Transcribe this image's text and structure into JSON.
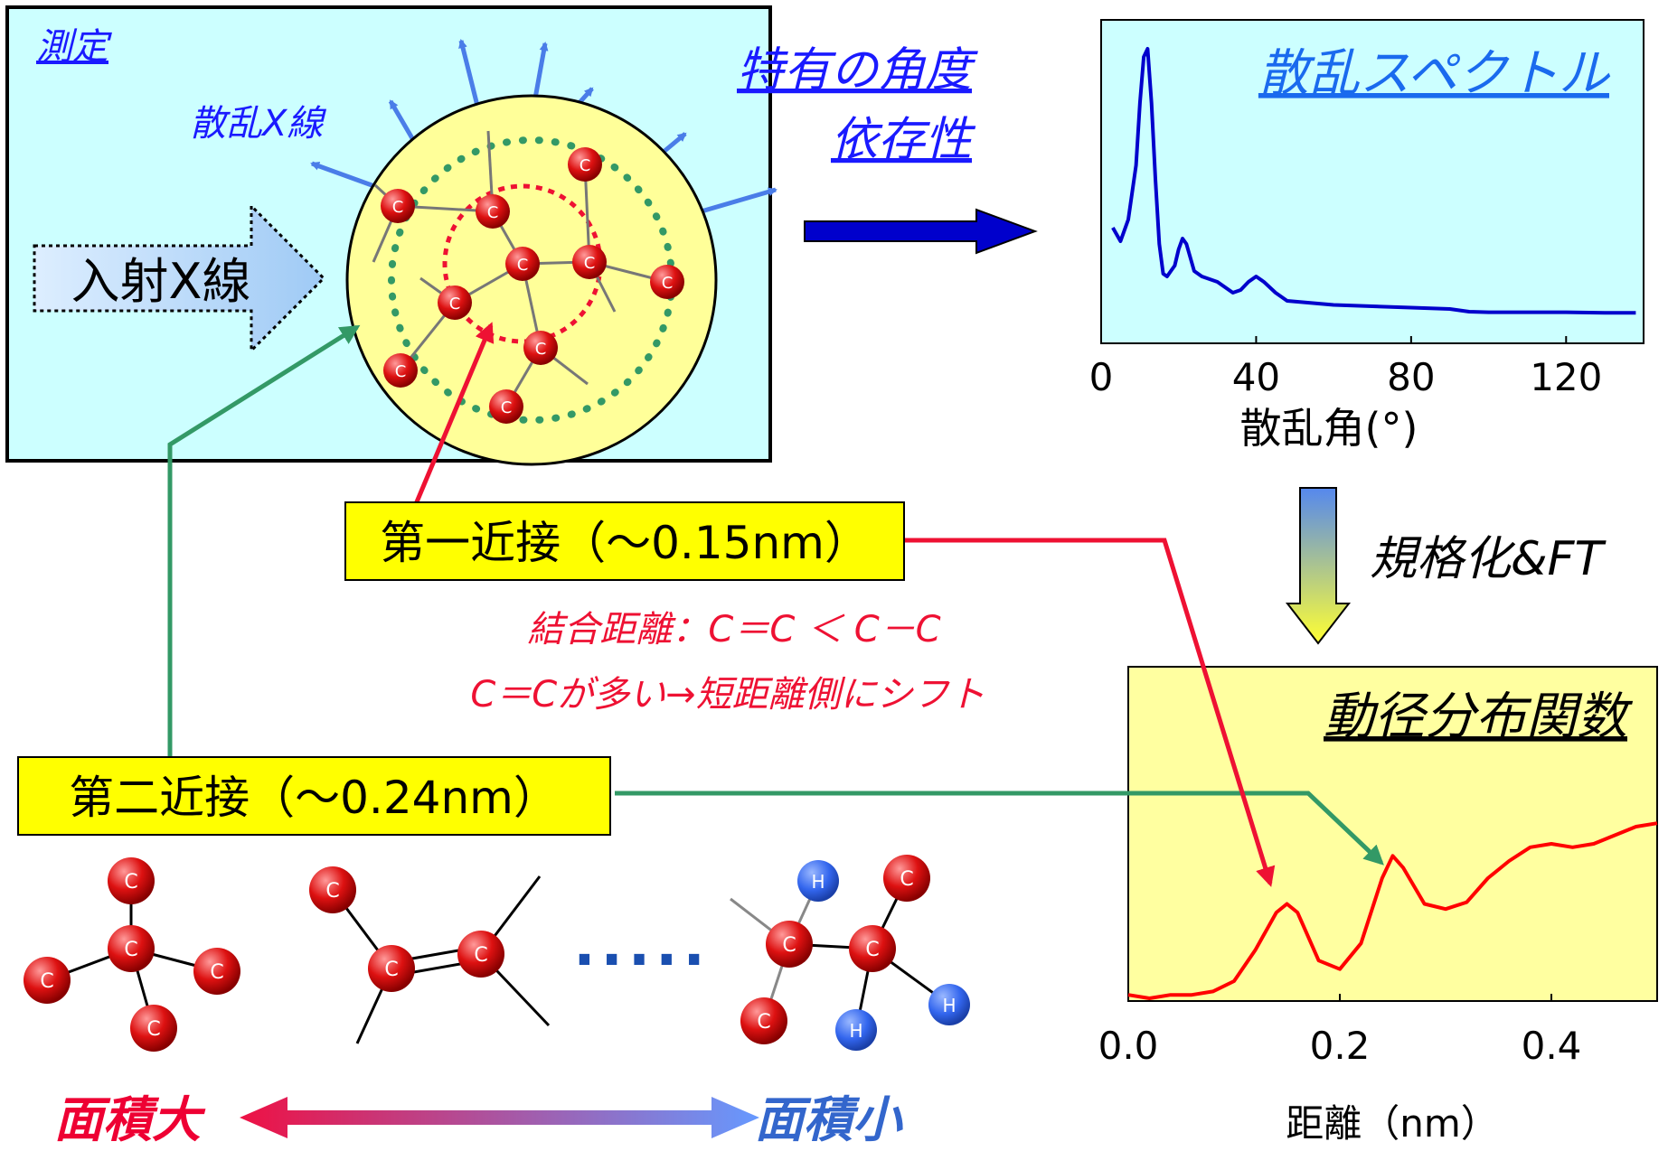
{
  "measurement": {
    "title": "測定",
    "scattered_label": "散乱X線",
    "incident_label": "入射X線",
    "angle_dependence_line1": "特有の角度",
    "angle_dependence_line2": "依存性",
    "atom_label": "C"
  },
  "spectrum": {
    "title": "散乱スペクトル",
    "x_axis_label": "散乱角(°)",
    "x_ticks": [
      "0",
      "40",
      "80",
      "120"
    ]
  },
  "transform": {
    "label": "規格化&FT"
  },
  "rdf": {
    "title": "動径分布関数",
    "x_axis_label": "距離（nm）",
    "x_ticks": [
      "0.0",
      "0.2",
      "0.4"
    ]
  },
  "first_neighbor": {
    "label": "第一近接（～0.15nm）",
    "note_line1": "結合距離：C＝C ＜ C－C",
    "note_line2": "C＝Cが多い→短距離側にシフト"
  },
  "second_neighbor": {
    "label": "第二近接（～0.24nm）"
  },
  "molecules": {
    "carbon_label": "C",
    "hydrogen_label": "H",
    "ellipsis": "....."
  },
  "area": {
    "large": "面積大",
    "small": "面積小"
  },
  "colors": {
    "measurement_bg": "#ccffff",
    "sphere_fill": "#ffff99",
    "spectrum_line": "#0000cc",
    "rdf_bg": "#ffffa0",
    "rdf_line": "#ff0000",
    "first_arrow": "#ee1133",
    "second_arrow": "#339966",
    "carbon": "#cc0000",
    "hydrogen": "#3366ee",
    "title_blue": "#1a1aff",
    "area_large": "#ee0033",
    "area_small": "#3366cc"
  },
  "chart_data": [
    {
      "type": "line",
      "title": "散乱スペクトル",
      "xlabel": "散乱角(°)",
      "ylabel": "",
      "xlim": [
        0,
        140
      ],
      "x_ticks": [
        0,
        40,
        80,
        120
      ],
      "series": [
        {
          "x": [
            3,
            5,
            7,
            9,
            10,
            11,
            12,
            13,
            14,
            15,
            16,
            17,
            18,
            19,
            20,
            21,
            22,
            24,
            26,
            30,
            34,
            36,
            38,
            40,
            42,
            45,
            48,
            52,
            56,
            60,
            70,
            80,
            90,
            95,
            100,
            110,
            120,
            130,
            138
          ],
          "y": [
            0.32,
            0.27,
            0.35,
            0.55,
            0.78,
            0.95,
            0.98,
            0.78,
            0.5,
            0.26,
            0.15,
            0.14,
            0.16,
            0.18,
            0.24,
            0.28,
            0.26,
            0.16,
            0.14,
            0.12,
            0.08,
            0.09,
            0.12,
            0.14,
            0.12,
            0.08,
            0.05,
            0.045,
            0.04,
            0.035,
            0.03,
            0.025,
            0.02,
            0.01,
            0.008,
            0.008,
            0.008,
            0.006,
            0.006
          ]
        }
      ]
    },
    {
      "type": "line",
      "title": "動径分布関数",
      "xlabel": "距離（nm）",
      "ylabel": "",
      "xlim": [
        0,
        0.5
      ],
      "x_ticks": [
        0.0,
        0.2,
        0.4
      ],
      "series": [
        {
          "x": [
            0.0,
            0.02,
            0.04,
            0.06,
            0.08,
            0.1,
            0.12,
            0.14,
            0.15,
            0.16,
            0.17,
            0.18,
            0.2,
            0.22,
            0.24,
            0.25,
            0.26,
            0.28,
            0.3,
            0.32,
            0.34,
            0.36,
            0.38,
            0.4,
            0.42,
            0.44,
            0.46,
            0.48,
            0.5
          ],
          "y": [
            0.02,
            0.0,
            0.02,
            0.02,
            0.04,
            0.1,
            0.28,
            0.5,
            0.55,
            0.5,
            0.36,
            0.22,
            0.17,
            0.32,
            0.7,
            0.83,
            0.76,
            0.55,
            0.52,
            0.56,
            0.7,
            0.8,
            0.88,
            0.9,
            0.88,
            0.9,
            0.95,
            1.0,
            1.02
          ]
        }
      ]
    }
  ]
}
